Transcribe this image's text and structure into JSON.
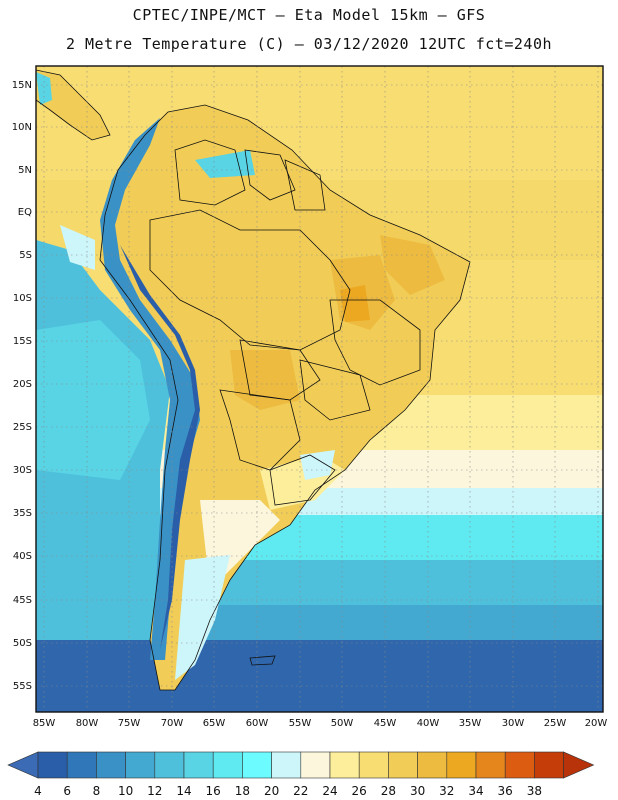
{
  "header": {
    "line1": "CPTEC/INPE/MCT —  Eta Model 15km — GFS",
    "line2": "2 Metre Temperature (C) — 03/12/2020 12UTC fct=240h"
  },
  "map": {
    "lat_labels": [
      "15N",
      "10N",
      "5N",
      "EQ",
      "5S",
      "10S",
      "15S",
      "20S",
      "25S",
      "30S",
      "35S",
      "40S",
      "45S",
      "50S",
      "55S"
    ],
    "lon_labels": [
      "85W",
      "80W",
      "75W",
      "70W",
      "65W",
      "60W",
      "55W",
      "50W",
      "45W",
      "40W",
      "35W",
      "30W",
      "25W",
      "20W"
    ]
  },
  "colorbar": {
    "levels": [
      "4",
      "6",
      "8",
      "10",
      "12",
      "14",
      "16",
      "18",
      "20",
      "22",
      "24",
      "26",
      "28",
      "30",
      "32",
      "34",
      "36",
      "38"
    ],
    "colors": [
      "#2b5ea8",
      "#2f77b8",
      "#3a91c6",
      "#43a9d1",
      "#4fc0db",
      "#58d4e5",
      "#5feaf2",
      "#6cfbff",
      "#cdf6fb",
      "#fbf6dc",
      "#fcee9a",
      "#f8dd73",
      "#f1cd57",
      "#ecbb3f",
      "#eca820",
      "#e5861d",
      "#dc5d12",
      "#c53e0a"
    ],
    "below_color": "#3a6bb4",
    "above_color": "#b8330a"
  }
}
